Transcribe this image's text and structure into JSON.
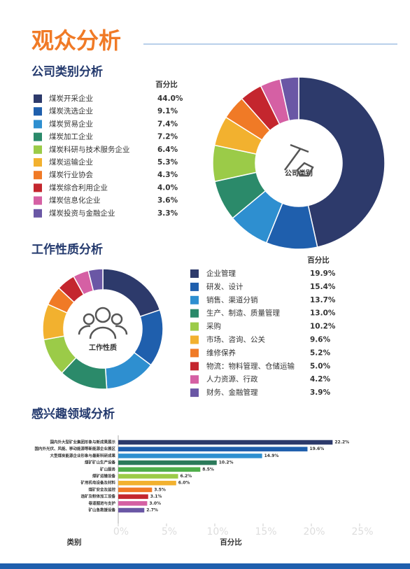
{
  "page_title": "观众分析",
  "chart_data": [
    {
      "type": "donut",
      "title": "公司类别分析",
      "center_label": "公司类别",
      "value_header": "百分比",
      "categories": [
        "煤炭开采企业",
        "煤炭洗选企业",
        "煤炭贸易企业",
        "煤炭加工企业",
        "煤炭科研与技术服务企业",
        "煤炭运输企业",
        "煤炭行业协会",
        "煤炭综合利用企业",
        "煤炭信息化企业",
        "煤炭投资与金融企业"
      ],
      "values": [
        44.0,
        9.1,
        7.4,
        7.2,
        6.4,
        5.3,
        4.3,
        4.0,
        3.6,
        3.3
      ],
      "value_labels": [
        "44.0%",
        "9.1%",
        "7.4%",
        "7.2%",
        "6.4%",
        "5.3%",
        "4.3%",
        "4.0%",
        "3.6%",
        "3.3%"
      ],
      "colors": [
        "#2d3a6b",
        "#1f5fad",
        "#2e8fd0",
        "#2b8a6a",
        "#9bcb48",
        "#f2b12f",
        "#f07a26",
        "#c4262e",
        "#d560a4",
        "#6a57a5"
      ]
    },
    {
      "type": "donut",
      "title": "工作性质分析",
      "center_label": "工作性质",
      "value_header": "百分比",
      "categories": [
        "企业管理",
        "研发、设计",
        "销售、渠道分销",
        "生产、制造、质量管理",
        "采购",
        "市场、咨询、公关",
        "维修保养",
        "物流：物料管理、仓储运输",
        "人力资源、行政",
        "财务、金融管理"
      ],
      "values": [
        19.9,
        15.4,
        13.7,
        13.0,
        10.2,
        9.6,
        5.2,
        5.0,
        4.2,
        3.9
      ],
      "value_labels": [
        "19.9%",
        "15.4%",
        "13.7%",
        "13.0%",
        "10.2%",
        "9.6%",
        "5.2%",
        "5.0%",
        "4.2%",
        "3.9%"
      ],
      "colors": [
        "#2d3a6b",
        "#1f5fad",
        "#2e8fd0",
        "#2b8a6a",
        "#9bcb48",
        "#f2b12f",
        "#f07a26",
        "#c4262e",
        "#d560a4",
        "#6a57a5"
      ]
    },
    {
      "type": "hbar",
      "title": "感兴趣领域分析",
      "x_label": "百分比",
      "y_label": "类别",
      "categories": [
        "国内外大型矿业集团形象与新成果展示",
        "国内外光伏、风能、移动能源等新能源企业展区",
        "大型煤炭能源企业形象与最新科研成果",
        "煤矿矿山生产设备",
        "矿山服务",
        "煤矿运输设备",
        "矿用机电设备及材料",
        "煤矿安全及监控",
        "选矿及粉体加工设备",
        "巷道掘进与支护",
        "矿山急救援设备"
      ],
      "values": [
        22.2,
        19.6,
        14.9,
        10.2,
        8.5,
        6.2,
        6.0,
        3.5,
        3.1,
        3.0,
        2.7
      ],
      "value_labels": [
        "22.2%",
        "19.6%",
        "14.9%",
        "10.2%",
        "8.5%",
        "6.2%",
        "6.0%",
        "3.5%",
        "3.1%",
        "3.0%",
        "2.7%"
      ],
      "colors": [
        "#2d3a6b",
        "#1f5fad",
        "#2e8fd0",
        "#2b7a5a",
        "#4fae4a",
        "#9bcb48",
        "#f2b12f",
        "#f07a26",
        "#c4262e",
        "#d560a4",
        "#6a57a5"
      ],
      "xlim": [
        0,
        25
      ],
      "xticks": [
        {
          "value": 0,
          "label": "0%"
        },
        {
          "value": 5,
          "label": "5%"
        },
        {
          "value": 10,
          "label": "10%"
        },
        {
          "value": 15,
          "label": "15%"
        },
        {
          "value": 20,
          "label": "20%"
        },
        {
          "value": 25,
          "label": "25%"
        }
      ]
    }
  ]
}
